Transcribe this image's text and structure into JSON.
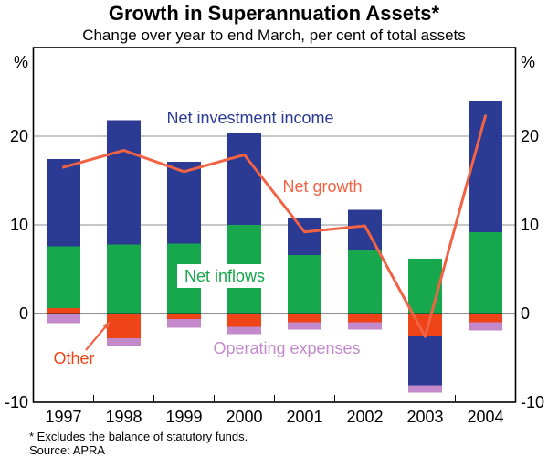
{
  "header": {
    "title": "Growth in Superannuation Assets*",
    "subtitle": "Change over year to end March, per cent of total assets"
  },
  "footer": {
    "footnote": "* Excludes the balance of statutory funds.",
    "source": "Source: APRA"
  },
  "chart_data": {
    "type": "bar",
    "subtype": "stacked-bar-with-line",
    "categories": [
      "1997",
      "1998",
      "1999",
      "2000",
      "2001",
      "2002",
      "2003",
      "2004"
    ],
    "series": [
      {
        "key": "other",
        "name": "Other",
        "color": "#ee4418",
        "values": [
          0.6,
          -2.8,
          -0.6,
          -1.5,
          -1.0,
          -1.0,
          -2.5,
          -1.0
        ]
      },
      {
        "key": "net-inflows",
        "name": "Net inflows",
        "color": "#17a74c",
        "values": [
          7.0,
          7.8,
          7.9,
          10.0,
          6.6,
          7.2,
          6.2,
          9.2
        ]
      },
      {
        "key": "net-investment-income",
        "name": "Net investment income",
        "color": "#2b3a92",
        "values": [
          9.8,
          14.0,
          9.2,
          10.4,
          4.2,
          4.5,
          -5.6,
          14.8
        ]
      },
      {
        "key": "operating-expenses",
        "name": "Operating expenses",
        "color": "#c389cb",
        "values": [
          -1.1,
          -0.9,
          -1.0,
          -0.8,
          -0.8,
          -0.8,
          -0.8,
          -0.9
        ]
      }
    ],
    "line_series": {
      "key": "net-growth",
      "name": "Net growth",
      "color": "#f26245",
      "values": [
        16.5,
        18.4,
        16.0,
        17.9,
        9.2,
        9.9,
        -2.6,
        22.3
      ]
    },
    "y_axis": {
      "unit": "%",
      "ticks": [
        -10,
        0,
        10,
        20
      ],
      "ylim": [
        -10,
        30
      ],
      "gridlines": [
        10,
        20
      ]
    },
    "style": {
      "gridline_color": "#8f8f8f",
      "zero_line_color": "#1f1f1f",
      "frame_color": "#000000"
    }
  }
}
